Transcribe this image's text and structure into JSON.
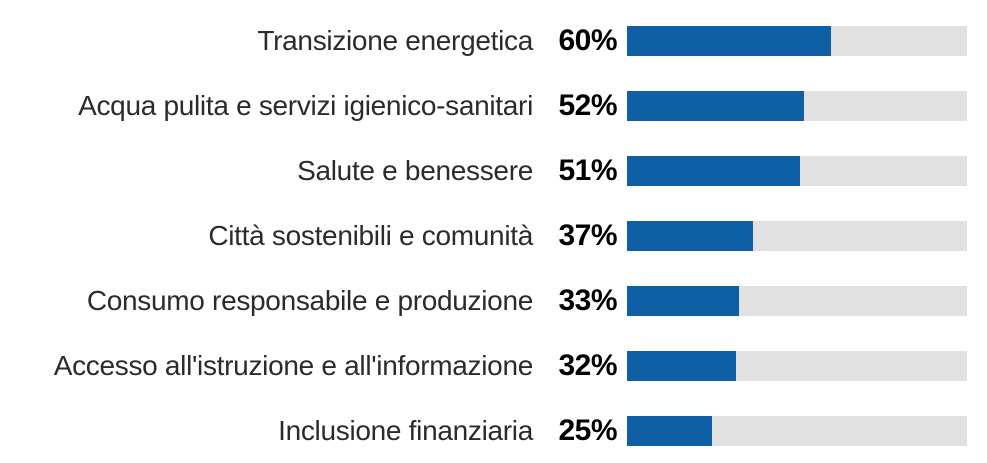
{
  "chart_data": {
    "type": "bar",
    "orientation": "horizontal",
    "title": "",
    "xlabel": "",
    "ylabel": "",
    "xlim": [
      0,
      100
    ],
    "grid": false,
    "legend": "none",
    "categories": [
      "Transizione energetica",
      "Acqua pulita e servizi igienico-sanitari",
      "Salute e benessere",
      "Città sostenibili e comunità",
      "Consumo responsabile e produzione",
      "Accesso all'istruzione e all'informazione",
      "Inclusione finanziaria"
    ],
    "values": [
      60,
      52,
      51,
      37,
      33,
      32,
      25
    ],
    "value_labels": [
      "60%",
      "52%",
      "51%",
      "37%",
      "33%",
      "32%",
      "25%"
    ],
    "colors": {
      "bar_fill": "#0e5fa3",
      "bar_track": "#e1e1e1",
      "category_text": "#2b2b2b",
      "value_text": "#000000",
      "background": "#ffffff"
    }
  }
}
